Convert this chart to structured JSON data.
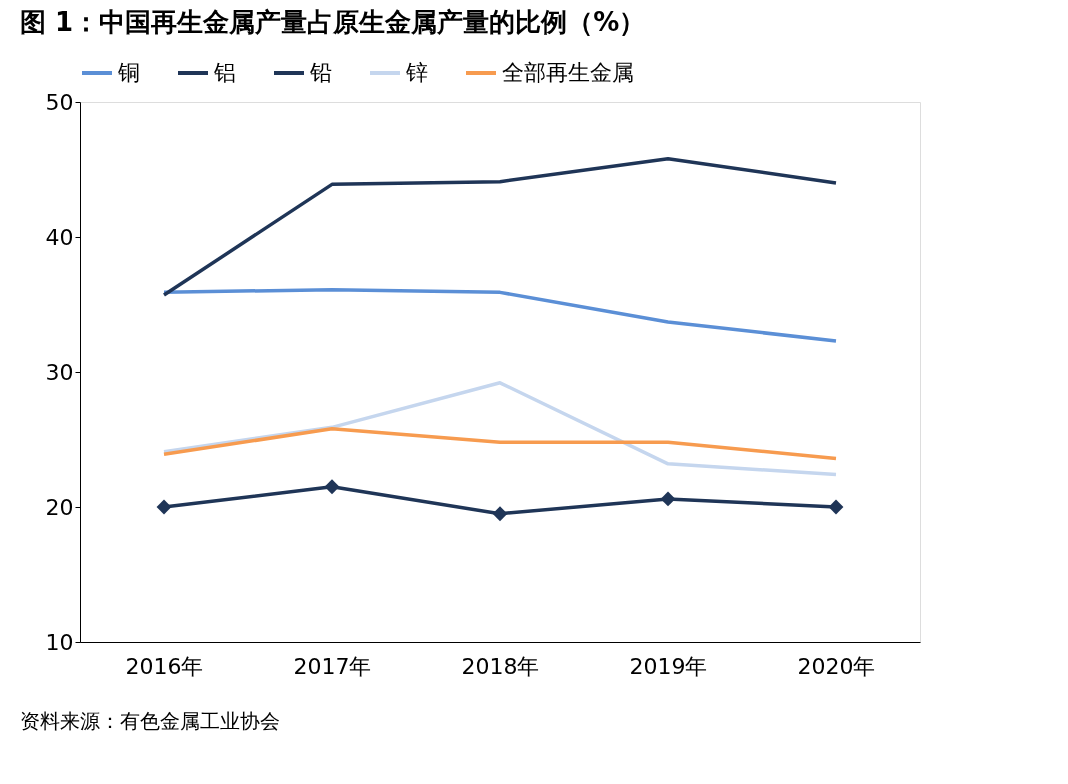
{
  "chart_data": {
    "type": "line",
    "title": "图 1：中国再生金属产量占原生金属产量的比例（%）",
    "categories": [
      "2016年",
      "2017年",
      "2018年",
      "2019年",
      "2020年"
    ],
    "series": [
      {
        "name": "铜",
        "color": "#5b8fd6",
        "values": [
          35.9,
          36.1,
          35.9,
          33.7,
          32.3
        ]
      },
      {
        "name": "铝",
        "color": "#1f3557",
        "marker": "diamond",
        "values": [
          20.0,
          21.5,
          19.5,
          20.6,
          20.0
        ]
      },
      {
        "name": "铅",
        "color": "#1f3557",
        "values": [
          35.7,
          43.9,
          44.1,
          45.8,
          44.0
        ]
      },
      {
        "name": "锌",
        "color": "#c5d6ee",
        "values": [
          24.1,
          25.9,
          29.2,
          23.2,
          22.4
        ]
      },
      {
        "name": "全部再生金属",
        "color": "#f79b4f",
        "values": [
          23.9,
          25.8,
          24.8,
          24.8,
          23.6
        ]
      }
    ],
    "ylim": [
      10,
      50
    ],
    "yticks": [
      10,
      20,
      30,
      40,
      50
    ],
    "grid": false,
    "legend": "top",
    "annotations": [
      "资料来源：有色金属工业协会"
    ]
  }
}
